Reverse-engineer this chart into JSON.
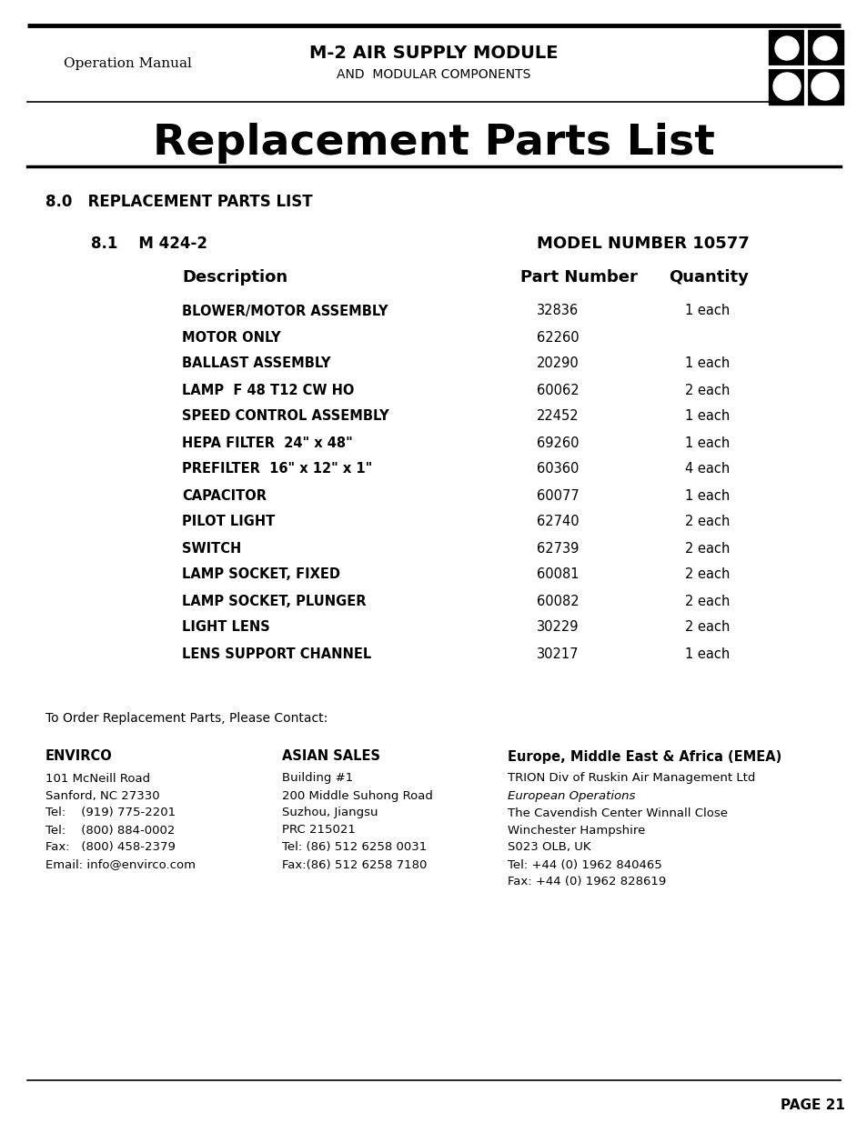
{
  "bg_color": "#ffffff",
  "header_left_text": "Operation Manual",
  "header_center_line1": "M-2 AIR SUPPLY MODULE",
  "header_center_line2": "AND  MODULAR COMPONENTS",
  "page_title": "Replacement Parts List",
  "section_heading": "8.0   REPLACEMENT PARTS LIST",
  "subsection": "8.1    M 424-2",
  "model_number": "MODEL NUMBER 10577",
  "col_headers": [
    "Description",
    "Part Number",
    "Quantity"
  ],
  "parts": [
    [
      "BLOWER/MOTOR ASSEMBLY",
      "32836",
      "1 each"
    ],
    [
      "MOTOR ONLY",
      "62260",
      ""
    ],
    [
      "BALLAST ASSEMBLY",
      "20290",
      "1 each"
    ],
    [
      "LAMP  F 48 T12 CW HO",
      "60062",
      "2 each"
    ],
    [
      "SPEED CONTROL ASSEMBLY",
      "22452",
      "1 each"
    ],
    [
      "HEPA FILTER  24\" x 48\"",
      "69260",
      "1 each"
    ],
    [
      "PREFILTER  16\" x 12\" x 1\"",
      "60360",
      "4 each"
    ],
    [
      "CAPACITOR",
      "60077",
      "1 each"
    ],
    [
      "PILOT LIGHT",
      "62740",
      "2 each"
    ],
    [
      "SWITCH",
      "62739",
      "2 each"
    ],
    [
      "LAMP SOCKET, FIXED",
      "60081",
      "2 each"
    ],
    [
      "LAMP SOCKET, PLUNGER",
      "60082",
      "2 each"
    ],
    [
      "LIGHT LENS",
      "30229",
      "2 each"
    ],
    [
      "LENS SUPPORT CHANNEL",
      "30217",
      "1 each"
    ]
  ],
  "order_text": "To Order Replacement Parts, Please Contact:",
  "col1_header": "ENVIRCO",
  "col1_lines": [
    "101 McNeill Road",
    "Sanford, NC 27330",
    "Tel:    (919) 775-2201",
    "Tel:    (800) 884-0002",
    "Fax:   (800) 458-2379",
    "Email: info@envirco.com"
  ],
  "col2_header": "ASIAN SALES",
  "col2_lines": [
    "Building #1",
    "200 Middle Suhong Road",
    "Suzhou, Jiangsu",
    "PRC 215021",
    "Tel: (86) 512 6258 0031",
    "Fax:(86) 512 6258 7180"
  ],
  "col3_header": "Europe, Middle East & Africa (EMEA)",
  "col3_lines": [
    "TRION Div of Ruskin Air Management Ltd",
    "European Operations",
    "The Cavendish Center Winnall Close",
    "Winchester Hampshire",
    "S023 OLB, UK",
    "Tel: +44 (0) 1962 840465",
    "Fax: +44 (0) 1962 828619"
  ],
  "col3_italic_line": "European Operations",
  "page_number": "PAGE 21"
}
